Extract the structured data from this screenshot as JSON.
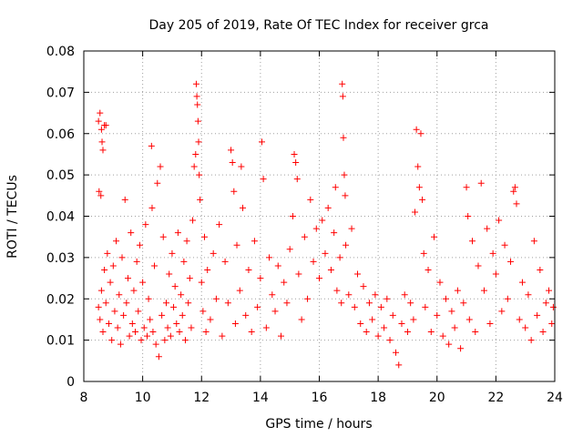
{
  "chart_data": {
    "type": "scatter",
    "title": "Day 205 of 2019, Rate Of TEC Index for receiver grca",
    "xlabel": "GPS time / hours",
    "ylabel": "ROTI / TECUs",
    "xlim": [
      8,
      24
    ],
    "ylim": [
      0,
      0.08
    ],
    "xticks": [
      "8",
      "10",
      "12",
      "14",
      "16",
      "18",
      "20",
      "22",
      "24"
    ],
    "yticks": [
      "0",
      "0.01",
      "0.02",
      "0.03",
      "0.04",
      "0.05",
      "0.06",
      "0.07",
      "0.08"
    ],
    "grid": true,
    "marker": "plus",
    "color": "#ff0000",
    "series": [
      {
        "points": [
          [
            8.5,
            0.063
          ],
          [
            8.55,
            0.065
          ],
          [
            8.6,
            0.061
          ],
          [
            8.62,
            0.058
          ],
          [
            8.65,
            0.056
          ],
          [
            8.7,
            0.062
          ],
          [
            8.75,
            0.062
          ],
          [
            8.52,
            0.046
          ],
          [
            8.58,
            0.045
          ],
          [
            8.5,
            0.018
          ],
          [
            8.55,
            0.015
          ],
          [
            8.6,
            0.022
          ],
          [
            8.65,
            0.012
          ],
          [
            8.7,
            0.027
          ],
          [
            8.75,
            0.019
          ],
          [
            8.8,
            0.031
          ],
          [
            8.85,
            0.014
          ],
          [
            8.9,
            0.024
          ],
          [
            8.95,
            0.01
          ],
          [
            9.0,
            0.028
          ],
          [
            9.05,
            0.017
          ],
          [
            9.1,
            0.034
          ],
          [
            9.15,
            0.013
          ],
          [
            9.2,
            0.021
          ],
          [
            9.25,
            0.009
          ],
          [
            9.3,
            0.03
          ],
          [
            9.35,
            0.016
          ],
          [
            9.4,
            0.044
          ],
          [
            9.45,
            0.019
          ],
          [
            9.5,
            0.025
          ],
          [
            9.55,
            0.011
          ],
          [
            9.6,
            0.036
          ],
          [
            9.65,
            0.014
          ],
          [
            9.7,
            0.022
          ],
          [
            9.75,
            0.012
          ],
          [
            9.8,
            0.029
          ],
          [
            9.85,
            0.017
          ],
          [
            9.9,
            0.033
          ],
          [
            9.95,
            0.01
          ],
          [
            10.0,
            0.024
          ],
          [
            10.05,
            0.013
          ],
          [
            10.1,
            0.038
          ],
          [
            10.15,
            0.011
          ],
          [
            10.2,
            0.02
          ],
          [
            10.25,
            0.015
          ],
          [
            10.3,
            0.057
          ],
          [
            10.32,
            0.042
          ],
          [
            10.35,
            0.012
          ],
          [
            10.4,
            0.028
          ],
          [
            10.45,
            0.009
          ],
          [
            10.5,
            0.048
          ],
          [
            10.55,
            0.006
          ],
          [
            10.6,
            0.052
          ],
          [
            10.65,
            0.016
          ],
          [
            10.7,
            0.035
          ],
          [
            10.75,
            0.01
          ],
          [
            10.8,
            0.019
          ],
          [
            10.85,
            0.013
          ],
          [
            10.9,
            0.026
          ],
          [
            10.95,
            0.011
          ],
          [
            11.0,
            0.031
          ],
          [
            11.05,
            0.018
          ],
          [
            11.1,
            0.023
          ],
          [
            11.15,
            0.014
          ],
          [
            11.2,
            0.036
          ],
          [
            11.25,
            0.012
          ],
          [
            11.3,
            0.021
          ],
          [
            11.35,
            0.016
          ],
          [
            11.4,
            0.029
          ],
          [
            11.45,
            0.01
          ],
          [
            11.5,
            0.034
          ],
          [
            11.55,
            0.019
          ],
          [
            11.6,
            0.025
          ],
          [
            11.65,
            0.013
          ],
          [
            11.7,
            0.039
          ],
          [
            11.75,
            0.052
          ],
          [
            11.8,
            0.055
          ],
          [
            11.82,
            0.072
          ],
          [
            11.84,
            0.069
          ],
          [
            11.86,
            0.067
          ],
          [
            11.88,
            0.063
          ],
          [
            11.9,
            0.058
          ],
          [
            11.92,
            0.05
          ],
          [
            11.95,
            0.044
          ],
          [
            12.0,
            0.024
          ],
          [
            12.05,
            0.017
          ],
          [
            12.1,
            0.035
          ],
          [
            12.15,
            0.012
          ],
          [
            12.2,
            0.027
          ],
          [
            12.3,
            0.015
          ],
          [
            12.4,
            0.031
          ],
          [
            12.5,
            0.02
          ],
          [
            12.6,
            0.038
          ],
          [
            12.7,
            0.011
          ],
          [
            12.8,
            0.029
          ],
          [
            12.9,
            0.019
          ],
          [
            13.0,
            0.056
          ],
          [
            13.05,
            0.053
          ],
          [
            13.1,
            0.046
          ],
          [
            13.15,
            0.014
          ],
          [
            13.2,
            0.033
          ],
          [
            13.3,
            0.022
          ],
          [
            13.35,
            0.052
          ],
          [
            13.4,
            0.042
          ],
          [
            13.5,
            0.016
          ],
          [
            13.6,
            0.027
          ],
          [
            13.7,
            0.012
          ],
          [
            13.8,
            0.034
          ],
          [
            13.9,
            0.018
          ],
          [
            14.0,
            0.025
          ],
          [
            14.05,
            0.058
          ],
          [
            14.1,
            0.049
          ],
          [
            14.2,
            0.013
          ],
          [
            14.3,
            0.03
          ],
          [
            14.4,
            0.021
          ],
          [
            14.5,
            0.017
          ],
          [
            14.6,
            0.028
          ],
          [
            14.7,
            0.011
          ],
          [
            14.8,
            0.024
          ],
          [
            14.9,
            0.019
          ],
          [
            15.0,
            0.032
          ],
          [
            15.1,
            0.04
          ],
          [
            15.15,
            0.055
          ],
          [
            15.2,
            0.053
          ],
          [
            15.25,
            0.049
          ],
          [
            15.3,
            0.026
          ],
          [
            15.4,
            0.015
          ],
          [
            15.5,
            0.035
          ],
          [
            15.6,
            0.02
          ],
          [
            15.7,
            0.044
          ],
          [
            15.8,
            0.029
          ],
          [
            15.9,
            0.037
          ],
          [
            16.0,
            0.025
          ],
          [
            16.1,
            0.039
          ],
          [
            16.2,
            0.031
          ],
          [
            16.3,
            0.042
          ],
          [
            16.4,
            0.027
          ],
          [
            16.5,
            0.036
          ],
          [
            16.55,
            0.047
          ],
          [
            16.6,
            0.022
          ],
          [
            16.7,
            0.03
          ],
          [
            16.75,
            0.019
          ],
          [
            16.78,
            0.072
          ],
          [
            16.8,
            0.069
          ],
          [
            16.82,
            0.059
          ],
          [
            16.85,
            0.05
          ],
          [
            16.88,
            0.045
          ],
          [
            16.9,
            0.033
          ],
          [
            17.0,
            0.021
          ],
          [
            17.1,
            0.037
          ],
          [
            17.2,
            0.018
          ],
          [
            17.3,
            0.026
          ],
          [
            17.4,
            0.014
          ],
          [
            17.5,
            0.023
          ],
          [
            17.6,
            0.012
          ],
          [
            17.7,
            0.019
          ],
          [
            17.8,
            0.015
          ],
          [
            17.9,
            0.021
          ],
          [
            18.0,
            0.011
          ],
          [
            18.1,
            0.018
          ],
          [
            18.2,
            0.013
          ],
          [
            18.3,
            0.02
          ],
          [
            18.4,
            0.01
          ],
          [
            18.5,
            0.016
          ],
          [
            18.6,
            0.007
          ],
          [
            18.7,
            0.004
          ],
          [
            18.8,
            0.014
          ],
          [
            18.9,
            0.021
          ],
          [
            19.0,
            0.012
          ],
          [
            19.1,
            0.019
          ],
          [
            19.2,
            0.015
          ],
          [
            19.25,
            0.041
          ],
          [
            19.3,
            0.061
          ],
          [
            19.35,
            0.052
          ],
          [
            19.4,
            0.047
          ],
          [
            19.45,
            0.06
          ],
          [
            19.5,
            0.044
          ],
          [
            19.55,
            0.031
          ],
          [
            19.6,
            0.018
          ],
          [
            19.7,
            0.027
          ],
          [
            19.8,
            0.012
          ],
          [
            19.9,
            0.035
          ],
          [
            20.0,
            0.016
          ],
          [
            20.1,
            0.024
          ],
          [
            20.2,
            0.011
          ],
          [
            20.3,
            0.02
          ],
          [
            20.4,
            0.009
          ],
          [
            20.5,
            0.017
          ],
          [
            20.6,
            0.013
          ],
          [
            20.7,
            0.022
          ],
          [
            20.8,
            0.008
          ],
          [
            20.9,
            0.019
          ],
          [
            21.0,
            0.047
          ],
          [
            21.05,
            0.04
          ],
          [
            21.1,
            0.015
          ],
          [
            21.2,
            0.034
          ],
          [
            21.3,
            0.012
          ],
          [
            21.4,
            0.028
          ],
          [
            21.5,
            0.048
          ],
          [
            21.6,
            0.022
          ],
          [
            21.7,
            0.037
          ],
          [
            21.8,
            0.014
          ],
          [
            21.9,
            0.031
          ],
          [
            22.0,
            0.026
          ],
          [
            22.1,
            0.039
          ],
          [
            22.2,
            0.017
          ],
          [
            22.3,
            0.033
          ],
          [
            22.4,
            0.02
          ],
          [
            22.5,
            0.029
          ],
          [
            22.6,
            0.046
          ],
          [
            22.65,
            0.047
          ],
          [
            22.7,
            0.043
          ],
          [
            22.8,
            0.015
          ],
          [
            22.9,
            0.024
          ],
          [
            23.0,
            0.013
          ],
          [
            23.1,
            0.021
          ],
          [
            23.2,
            0.01
          ],
          [
            23.3,
            0.034
          ],
          [
            23.4,
            0.016
          ],
          [
            23.5,
            0.027
          ],
          [
            23.6,
            0.012
          ],
          [
            23.7,
            0.019
          ],
          [
            23.8,
            0.022
          ],
          [
            23.9,
            0.014
          ],
          [
            23.95,
            0.018
          ]
        ]
      }
    ]
  }
}
